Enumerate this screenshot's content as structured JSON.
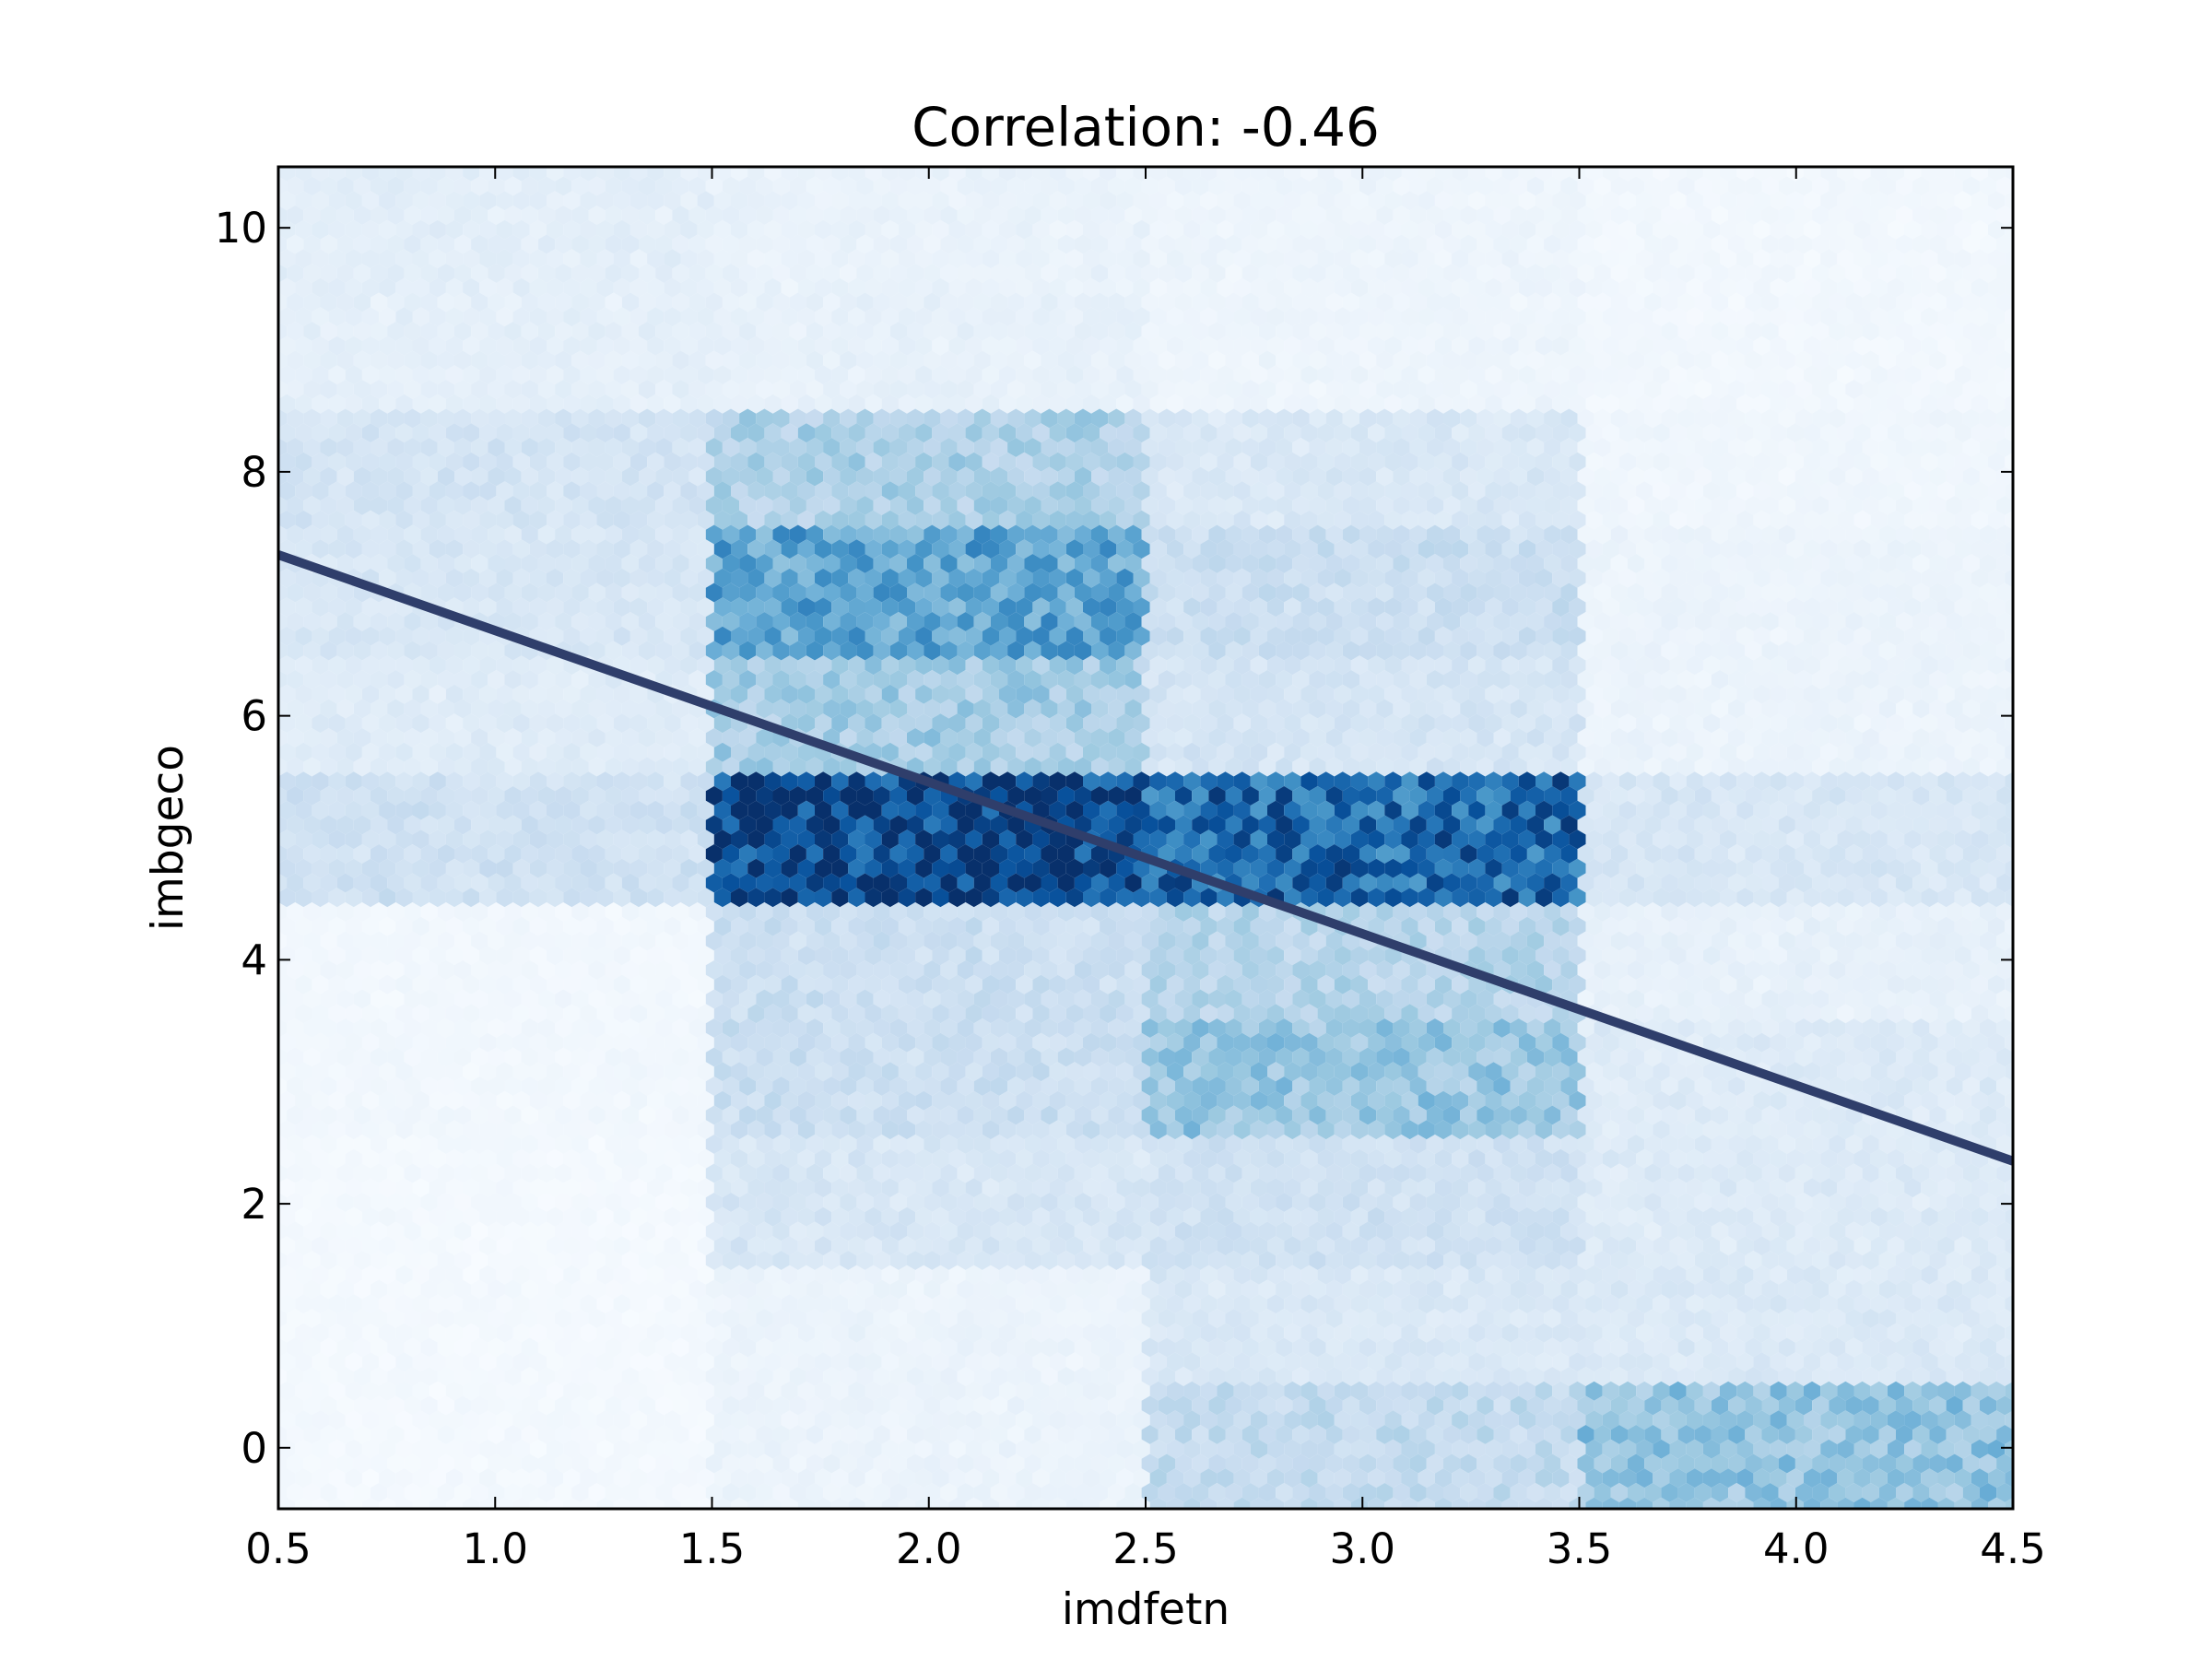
{
  "chart_data": {
    "type": "heatmap",
    "subtype": "hexbin",
    "title": "Correlation: -0.46",
    "xlabel": "imdfetn",
    "ylabel": "imbgeco",
    "xlim": [
      0.5,
      4.5
    ],
    "ylim": [
      -0.5,
      10.5
    ],
    "xticks": [
      0.5,
      1.0,
      1.5,
      2.0,
      2.5,
      3.0,
      3.5,
      4.0,
      4.5
    ],
    "xtick_labels": [
      "0.5",
      "1.0",
      "1.5",
      "2.0",
      "2.5",
      "3.0",
      "3.5",
      "4.0",
      "4.5"
    ],
    "yticks": [
      0,
      2,
      4,
      6,
      8,
      10
    ],
    "ytick_labels": [
      "0",
      "2",
      "4",
      "6",
      "8",
      "10"
    ],
    "grid": false,
    "colormap": "Blues",
    "x_categories": [
      1,
      2,
      3,
      4
    ],
    "y_categories": [
      0,
      1,
      2,
      3,
      4,
      5,
      6,
      7,
      8,
      9,
      10
    ],
    "density": [
      [
        0.02,
        0.06,
        0.25,
        0.4
      ],
      [
        0.02,
        0.06,
        0.15,
        0.14
      ],
      [
        0.02,
        0.16,
        0.2,
        0.13
      ],
      [
        0.03,
        0.22,
        0.38,
        0.13
      ],
      [
        0.03,
        0.22,
        0.3,
        0.08
      ],
      [
        0.2,
        0.95,
        0.78,
        0.16
      ],
      [
        0.12,
        0.35,
        0.17,
        0.06
      ],
      [
        0.16,
        0.55,
        0.22,
        0.06
      ],
      [
        0.18,
        0.33,
        0.15,
        0.04
      ],
      [
        0.09,
        0.08,
        0.05,
        0.03
      ],
      [
        0.1,
        0.07,
        0.05,
        0.03
      ]
    ],
    "regression_line": {
      "x": [
        0.5,
        4.5
      ],
      "y": [
        7.32,
        2.35
      ],
      "color": "#2f3e6b"
    },
    "colors": {
      "low": "#f7fbff",
      "high": "#08479b",
      "line": "#2f3e6b"
    }
  }
}
